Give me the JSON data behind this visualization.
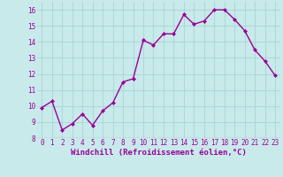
{
  "x": [
    0,
    1,
    2,
    3,
    4,
    5,
    6,
    7,
    8,
    9,
    10,
    11,
    12,
    13,
    14,
    15,
    16,
    17,
    18,
    19,
    20,
    21,
    22,
    23
  ],
  "y": [
    9.9,
    10.3,
    8.5,
    8.9,
    9.5,
    8.8,
    9.7,
    10.2,
    11.5,
    11.7,
    14.1,
    13.8,
    14.5,
    14.5,
    15.7,
    15.1,
    15.3,
    16.0,
    16.0,
    15.4,
    14.7,
    13.5,
    12.8,
    11.9
  ],
  "line_color": "#990099",
  "marker": "D",
  "marker_size": 2.0,
  "xlabel": "Windchill (Refroidissement éolien,°C)",
  "ylim": [
    8,
    16.5
  ],
  "xlim": [
    -0.5,
    23.5
  ],
  "yticks": [
    8,
    9,
    10,
    11,
    12,
    13,
    14,
    15,
    16
  ],
  "xticks": [
    0,
    1,
    2,
    3,
    4,
    5,
    6,
    7,
    8,
    9,
    10,
    11,
    12,
    13,
    14,
    15,
    16,
    17,
    18,
    19,
    20,
    21,
    22,
    23
  ],
  "bg_color": "#c8eaea",
  "grid_color": "#b0d8d8",
  "tick_color": "#990099",
  "label_color": "#990099",
  "xlabel_fontsize": 6.5,
  "tick_fontsize": 5.5,
  "linewidth": 1.0
}
